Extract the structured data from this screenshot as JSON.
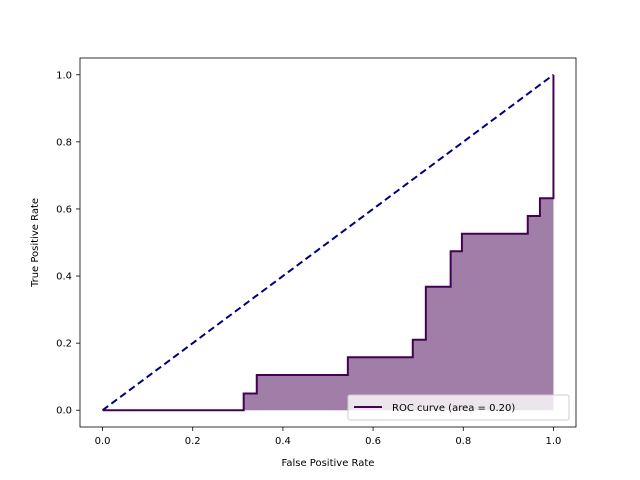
{
  "chart_data": {
    "type": "line",
    "title": "",
    "xlabel": "False Positive Rate",
    "ylabel": "True Positive Rate",
    "xlim": [
      -0.05,
      1.05
    ],
    "ylim": [
      -0.05,
      1.05
    ],
    "xticks": [
      0.0,
      0.2,
      0.4,
      0.6,
      0.8,
      1.0
    ],
    "yticks": [
      0.0,
      0.2,
      0.4,
      0.6,
      0.8,
      1.0
    ],
    "xtick_labels": [
      "0.0",
      "0.2",
      "0.4",
      "0.6",
      "0.8",
      "1.0"
    ],
    "ytick_labels": [
      "0.0",
      "0.2",
      "0.4",
      "0.6",
      "0.8",
      "1.0"
    ],
    "grid": false,
    "legend_position": "lower right",
    "series": [
      {
        "name": "ROC curve (area = 0.20)",
        "style": "solid-step",
        "color": "#440154",
        "fill_color": "#a17ea8",
        "x": [
          0.0,
          0.313,
          0.313,
          0.342,
          0.342,
          0.544,
          0.544,
          0.688,
          0.688,
          0.717,
          0.717,
          0.772,
          0.772,
          0.797,
          0.797,
          0.943,
          0.943,
          0.97,
          0.97,
          1.0,
          1.0
        ],
        "y": [
          0.0,
          0.0,
          0.05,
          0.05,
          0.105,
          0.105,
          0.158,
          0.158,
          0.21,
          0.21,
          0.368,
          0.368,
          0.474,
          0.474,
          0.526,
          0.526,
          0.579,
          0.579,
          0.632,
          0.632,
          1.0
        ]
      },
      {
        "name": "",
        "style": "dashed",
        "color": "#000080",
        "x": [
          0.0,
          1.0
        ],
        "y": [
          0.0,
          1.0
        ]
      }
    ]
  }
}
